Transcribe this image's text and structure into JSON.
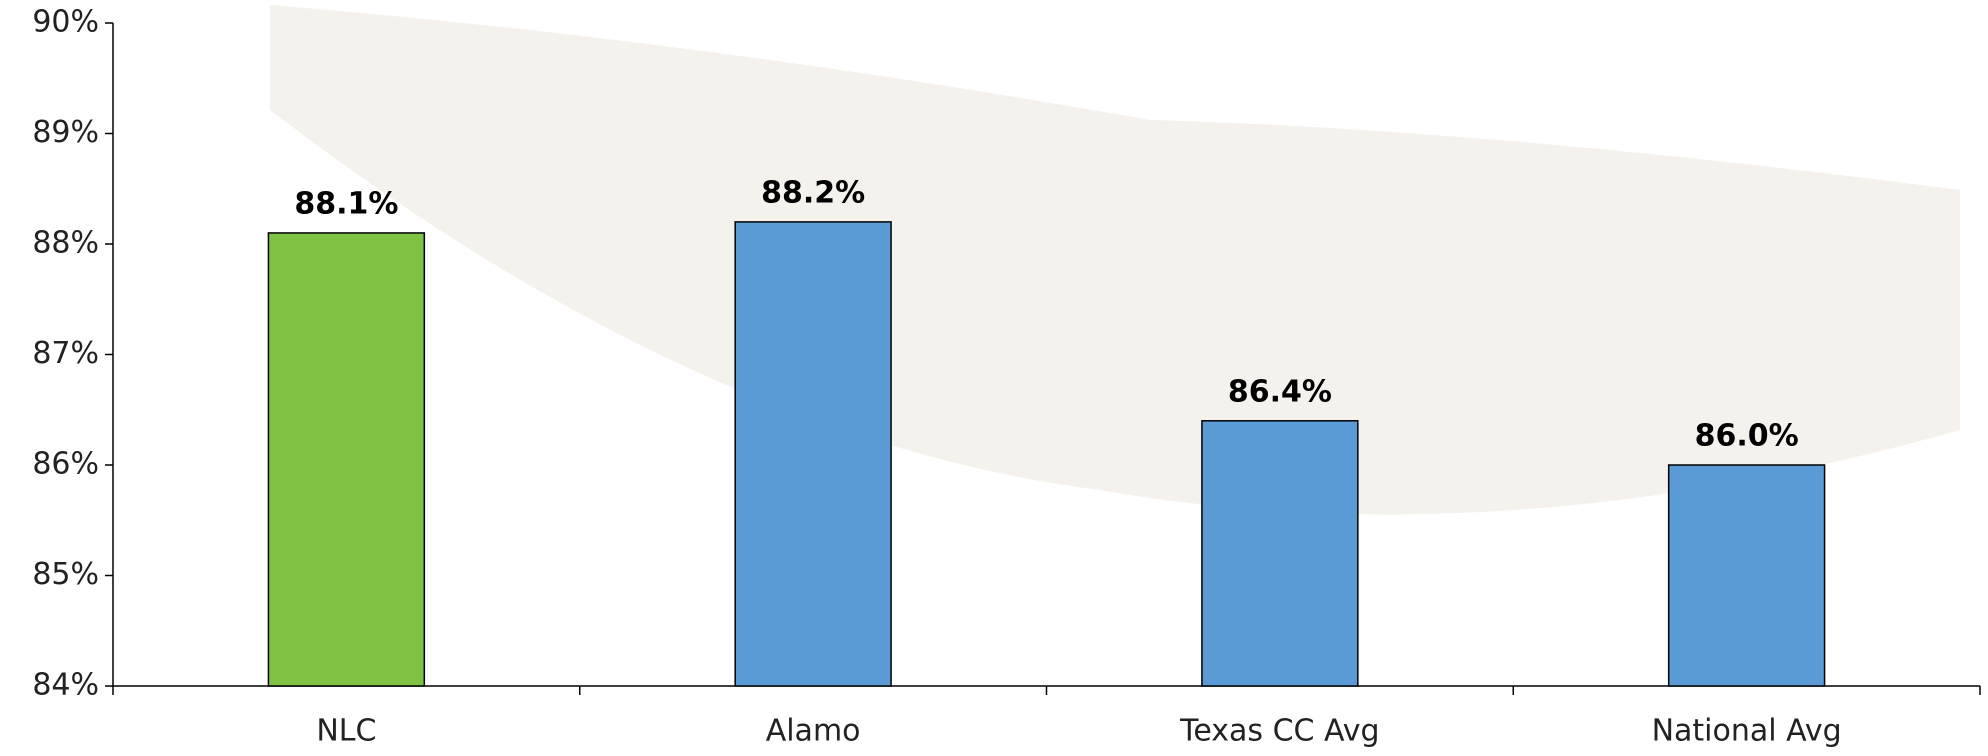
{
  "chart_data": {
    "type": "bar",
    "categories": [
      "NLC",
      "Alamo",
      "Texas CC Avg",
      "National Avg"
    ],
    "values": [
      88.1,
      88.2,
      86.4,
      86.0
    ],
    "value_labels": [
      "88.1%",
      "88.2%",
      "86.4%",
      "86.0%"
    ],
    "colors": [
      "#7dc242",
      "#5b9bd5",
      "#5b9bd5",
      "#5b9bd5"
    ],
    "ylim": [
      84,
      90
    ],
    "yticks": [
      {
        "value": 84,
        "label": "84%"
      },
      {
        "value": 85,
        "label": "85%"
      },
      {
        "value": 86,
        "label": "86%"
      },
      {
        "value": 87,
        "label": "87%"
      },
      {
        "value": 88,
        "label": "88%"
      },
      {
        "value": 89,
        "label": "89%"
      },
      {
        "value": 90,
        "label": "90%"
      }
    ],
    "grid": false
  }
}
